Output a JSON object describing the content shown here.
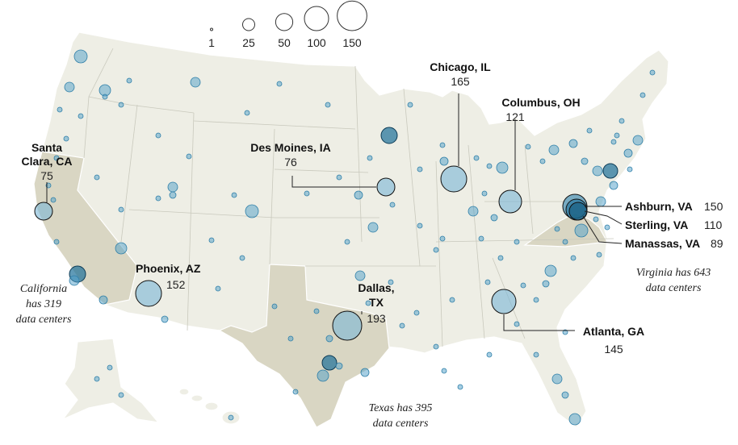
{
  "legend": {
    "sizes": [
      {
        "value": 1,
        "label": "1"
      },
      {
        "value": 25,
        "label": "25"
      },
      {
        "value": 50,
        "label": "50"
      },
      {
        "value": 100,
        "label": "100"
      },
      {
        "value": 150,
        "label": "150"
      }
    ]
  },
  "hubs": [
    {
      "id": "santa-clara",
      "city": "Santa\nClara, CA",
      "count": "75",
      "value": 75
    },
    {
      "id": "des-moines",
      "city": "Des Moines, IA",
      "count": "76",
      "value": 76
    },
    {
      "id": "chicago",
      "city": "Chicago, IL",
      "count": "165",
      "value": 165
    },
    {
      "id": "columbus",
      "city": "Columbus, OH",
      "count": "121",
      "value": 121
    },
    {
      "id": "ashburn",
      "city": "Ashburn, VA",
      "count": "150",
      "value": 150
    },
    {
      "id": "sterling",
      "city": "Sterling, VA",
      "count": "110",
      "value": 110
    },
    {
      "id": "manassas",
      "city": "Manassas, VA",
      "count": "89",
      "value": 89
    },
    {
      "id": "phoenix",
      "city": "Phoenix, AZ",
      "count": "152",
      "value": 152
    },
    {
      "id": "dallas",
      "city": "Dallas,\nTX",
      "count": "193",
      "value": 193
    },
    {
      "id": "atlanta",
      "city": "Atlanta, GA",
      "count": "145",
      "value": 145
    }
  ],
  "notes": [
    {
      "id": "california",
      "text": "California\nhas 319\ndata centers"
    },
    {
      "id": "virginia",
      "text": "Virginia has 643\ndata centers"
    },
    {
      "id": "texas",
      "text": "Texas has 395\ndata centers"
    }
  ],
  "colors": {
    "land": "#eeeee5",
    "highlight_state": "#d9d6c3",
    "bubble_fill": "#4e9ec8",
    "bubble_stroke": "#2f7fa8"
  }
}
